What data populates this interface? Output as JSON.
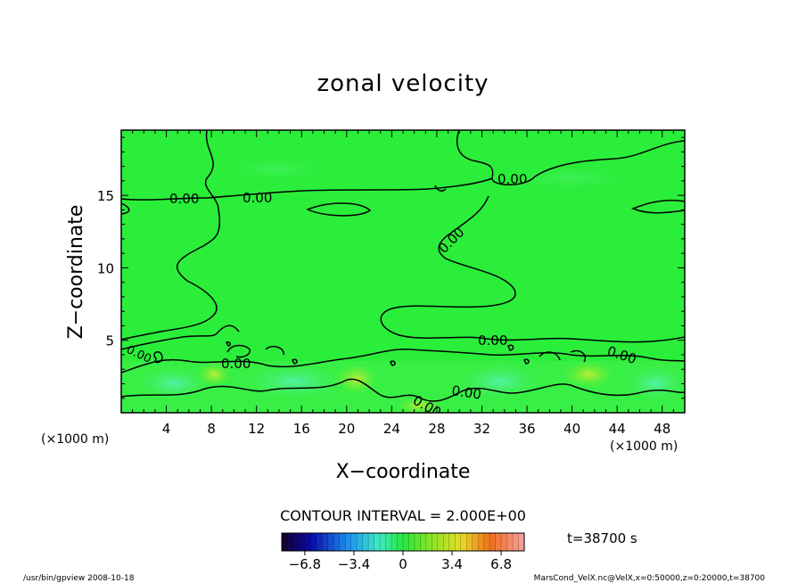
{
  "chart_data": {
    "type": "heatmap",
    "title": "zonal velocity",
    "xlabel": "X−coordinate",
    "ylabel": "Z−coordinate",
    "xunit": "(×1000 m)",
    "yunit": "(×1000 m)",
    "xlim": [
      0,
      50
    ],
    "ylim": [
      0,
      19.5
    ],
    "xticks": [
      "4",
      "8",
      "12",
      "16",
      "20",
      "24",
      "28",
      "32",
      "36",
      "40",
      "44",
      "48"
    ],
    "xtick_values": [
      4,
      8,
      12,
      16,
      20,
      24,
      28,
      32,
      36,
      40,
      44,
      48
    ],
    "yticks": [
      "5",
      "10",
      "15"
    ],
    "ytick_values": [
      5,
      10,
      15
    ],
    "contour_interval": "CONTOUR INTERVAL = 2.000E+00",
    "contour_labels": [
      "0.00",
      "0.00",
      "0.00",
      "0.00",
      "0.00",
      "0.00",
      "0.00",
      "0.00",
      "0.00",
      "0.00"
    ],
    "colorbar": {
      "ticks": [
        "−6.8",
        "−3.4",
        "0",
        "3.4",
        "6.8"
      ],
      "tick_values": [
        -6.8,
        -3.4,
        0,
        3.4,
        6.8
      ],
      "range": [
        -8.4,
        8.4
      ]
    },
    "time_label": "t=38700  s",
    "footer_left": "/usr/bin/gpview   2008-10-18",
    "footer_right": "MarsCond_VelX.nc@VelX,x=0:50000,z=0:20000,t=38700",
    "colors": {
      "background_field": "#22ee33",
      "contour": "#000000"
    }
  }
}
